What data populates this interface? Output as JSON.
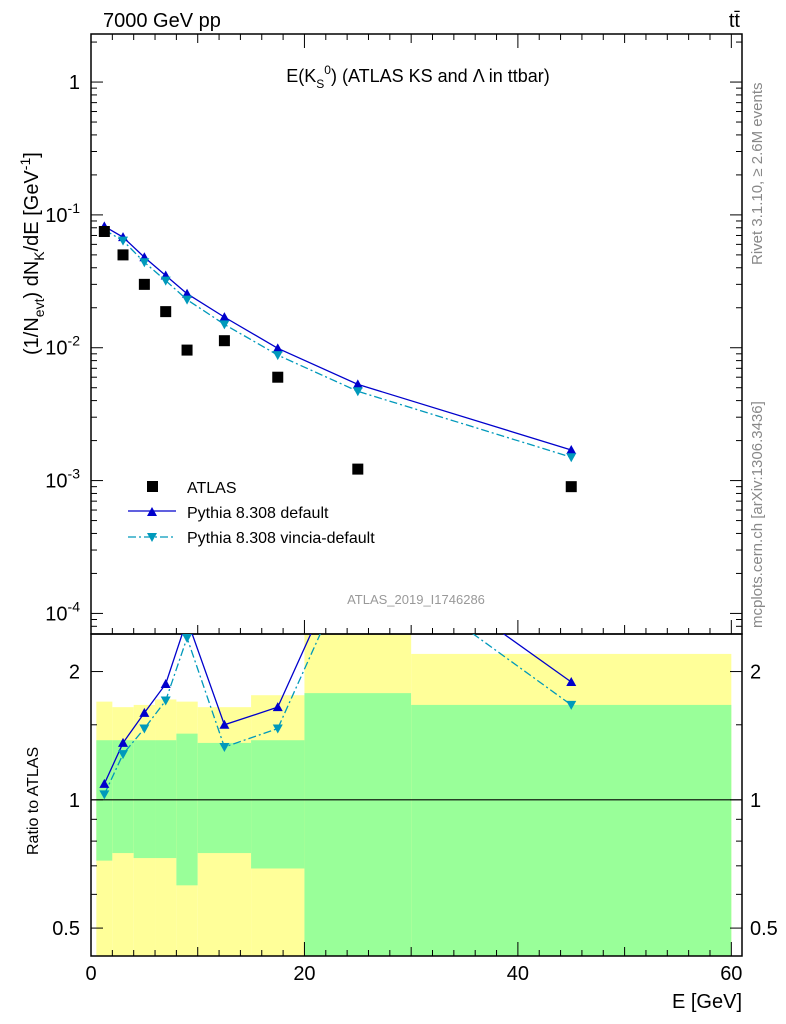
{
  "header": {
    "energy_label": "7000 GeV pp",
    "process_label": "tt̄",
    "plot_title": "E(K_S^0) (ATLAS KS and Λ in ttbar)",
    "watermark": "ATLAS_2019_I1746286",
    "side_top": "Rivet 3.1.10, ≥ 2.6M events",
    "side_bottom": "mcplots.cern.ch [arXiv:1306.3436]"
  },
  "colors": {
    "data": "#000000",
    "default": "#0000cc",
    "vincia": "#0099bb",
    "band_outer": "#ffff99",
    "band_inner": "#99ff99"
  },
  "chart_data": [
    {
      "type": "scatter",
      "ylog": true,
      "title": "E(K_S^0) (ATLAS KS and Λ in ttbar)",
      "ylabel": "(1/N_evt) dN_K/dE [GeV^-1]",
      "xlim": [
        0,
        61
      ],
      "ylim": [
        7e-05,
        2.3
      ],
      "y_ticks": [
        "1",
        "10^-1",
        "10^-2",
        "10^-3",
        "10^-4"
      ],
      "legend_position": "lower-left",
      "series": [
        {
          "name": "ATLAS",
          "marker": "square",
          "x": [
            1.25,
            3,
            5,
            7,
            9,
            12.5,
            17.5,
            25,
            45
          ],
          "y": [
            0.075,
            0.05,
            0.03,
            0.0187,
            0.0096,
            0.0113,
            0.006,
            0.00122,
            0.0009
          ]
        },
        {
          "name": "Pythia 8.308 default",
          "marker": "triangle-up",
          "line": "solid",
          "x": [
            1.25,
            3,
            5,
            7,
            9,
            12.5,
            17.5,
            25,
            45
          ],
          "y": [
            0.082,
            0.068,
            0.048,
            0.035,
            0.0255,
            0.017,
            0.0099,
            0.0053,
            0.0017
          ]
        },
        {
          "name": "Pythia 8.308 vincia-default",
          "marker": "triangle-down",
          "line": "dash-dot",
          "x": [
            1.25,
            3,
            5,
            7,
            9,
            12.5,
            17.5,
            25,
            45
          ],
          "y": [
            0.077,
            0.064,
            0.044,
            0.032,
            0.023,
            0.015,
            0.0088,
            0.0047,
            0.0015
          ]
        }
      ]
    },
    {
      "type": "line",
      "ylog": true,
      "xlabel": "E [GeV]",
      "ylabel": "Ratio to ATLAS",
      "xlim": [
        0,
        61
      ],
      "ylim": [
        0.43,
        2.45
      ],
      "x_ticks": [
        "0",
        "20",
        "40",
        "60"
      ],
      "y_ticks": [
        "0.5",
        "1",
        "2"
      ],
      "reference_line": 1,
      "bands": [
        {
          "x_edges": [
            0.5,
            2,
            4,
            6,
            8,
            10,
            15,
            20,
            30,
            60
          ],
          "inner_lo": [
            0.72,
            0.75,
            0.73,
            0.73,
            0.63,
            0.75,
            0.69,
            0.0,
            0.0
          ],
          "inner_hi": [
            1.38,
            1.38,
            1.38,
            1.38,
            1.43,
            1.36,
            1.38,
            1.78,
            1.67
          ],
          "outer_lo": [
            0.0,
            0.0,
            0.0,
            0.0,
            0.0,
            0.0,
            0.0,
            0.0,
            0.0
          ],
          "outer_hi": [
            1.7,
            1.65,
            1.67,
            1.72,
            1.7,
            1.65,
            1.76,
            3.0,
            2.2
          ]
        }
      ],
      "series": [
        {
          "name": "Pythia 8.308 default",
          "x": [
            1.25,
            3,
            5,
            7,
            9,
            12.5,
            17.5,
            25,
            45
          ],
          "y": [
            1.09,
            1.36,
            1.6,
            1.87,
            2.65,
            1.5,
            1.65,
            4.3,
            1.89
          ]
        },
        {
          "name": "Pythia 8.308 vincia-default",
          "x": [
            1.25,
            3,
            5,
            7,
            9,
            12.5,
            17.5,
            25,
            45
          ],
          "y": [
            1.03,
            1.28,
            1.47,
            1.71,
            2.4,
            1.33,
            1.47,
            3.85,
            1.67
          ]
        }
      ]
    }
  ]
}
